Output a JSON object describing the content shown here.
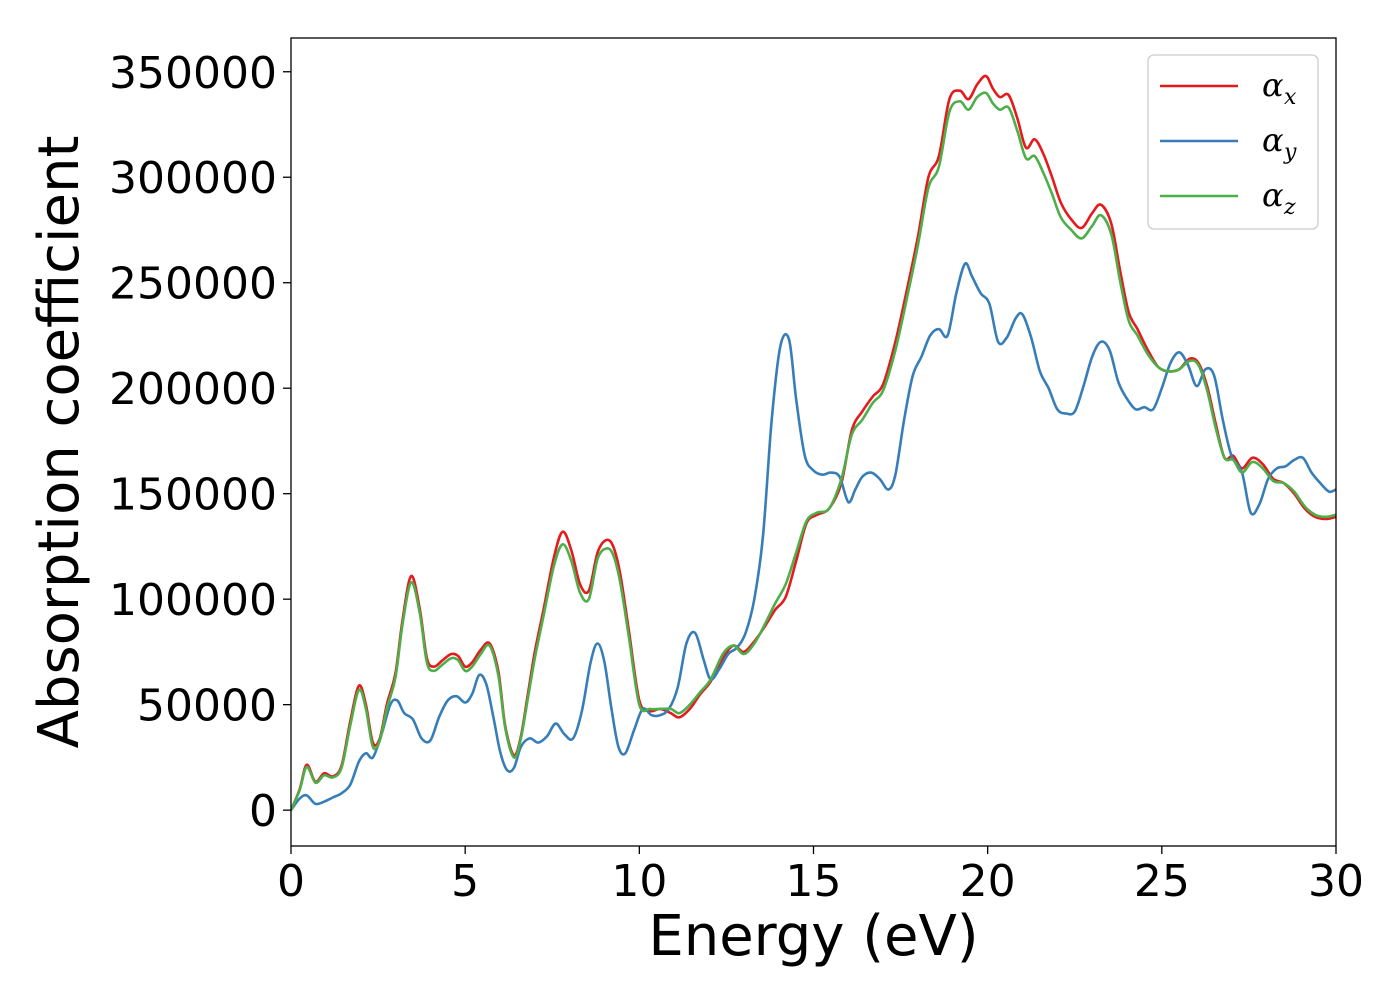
{
  "chart_data": {
    "type": "line",
    "xlabel": "Energy (eV)",
    "ylabel": "Absorption coefficient",
    "xlim": [
      0,
      30
    ],
    "ylim": [
      -17000,
      366000
    ],
    "x_ticks": [
      0,
      5,
      10,
      15,
      20,
      25,
      30
    ],
    "y_ticks": [
      0,
      50000,
      100000,
      150000,
      200000,
      250000,
      300000,
      350000
    ],
    "legend_placement": "top-right",
    "grid": false,
    "series": [
      {
        "name": "α",
        "subscript": "x",
        "color": "#e41a1c",
        "x": [
          0,
          0.25,
          0.45,
          0.7,
          0.95,
          1.2,
          1.45,
          1.7,
          1.95,
          2.15,
          2.35,
          2.55,
          2.75,
          3.0,
          3.2,
          3.45,
          3.7,
          3.9,
          4.1,
          4.35,
          4.6,
          4.8,
          5.0,
          5.2,
          5.45,
          5.7,
          5.95,
          6.15,
          6.4,
          6.6,
          6.8,
          7.0,
          7.25,
          7.55,
          7.8,
          8.05,
          8.3,
          8.55,
          8.8,
          9.05,
          9.25,
          9.45,
          9.7,
          10.0,
          10.3,
          10.6,
          10.9,
          11.15,
          11.45,
          11.75,
          12.05,
          12.4,
          12.7,
          13.0,
          13.3,
          13.6,
          13.9,
          14.2,
          14.5,
          14.8,
          15.1,
          15.45,
          15.8,
          16.1,
          16.4,
          16.7,
          17.0,
          17.35,
          17.7,
          18.0,
          18.3,
          18.6,
          18.9,
          19.2,
          19.45,
          19.7,
          19.95,
          20.15,
          20.35,
          20.6,
          20.85,
          21.1,
          21.35,
          21.6,
          21.85,
          22.1,
          22.4,
          22.7,
          23.0,
          23.25,
          23.55,
          23.8,
          24.05,
          24.3,
          24.6,
          24.9,
          25.2,
          25.5,
          25.8,
          26.05,
          26.3,
          26.55,
          26.8,
          27.05,
          27.3,
          27.6,
          27.9,
          28.2,
          28.5,
          28.8,
          29.1,
          29.4,
          29.7,
          30.0
        ],
        "y": [
          0,
          10000,
          21500,
          13500,
          17500,
          16000,
          21000,
          42000,
          59000,
          50000,
          32000,
          34000,
          50000,
          65000,
          90000,
          111000,
          95000,
          72000,
          68000,
          71000,
          74000,
          73000,
          68000,
          70000,
          76000,
          79000,
          66000,
          40000,
          26000,
          35000,
          55000,
          75000,
          95000,
          120000,
          132000,
          123000,
          107000,
          104000,
          122000,
          128000,
          125000,
          112000,
          85000,
          52000,
          47000,
          48000,
          46000,
          44000,
          48000,
          55000,
          61000,
          72000,
          78000,
          75000,
          80000,
          87000,
          95000,
          101000,
          118000,
          136000,
          140000,
          143000,
          155000,
          180000,
          189000,
          196000,
          202000,
          222000,
          248000,
          272000,
          300000,
          310000,
          337000,
          341000,
          337000,
          344000,
          348000,
          342000,
          338000,
          339000,
          328000,
          314000,
          318000,
          311000,
          300000,
          288000,
          280000,
          276000,
          283000,
          287000,
          278000,
          256000,
          236000,
          228000,
          218000,
          210000,
          208000,
          209000,
          214000,
          212000,
          201000,
          183000,
          167000,
          168000,
          162000,
          167000,
          164000,
          157000,
          155000,
          150000,
          143000,
          139000,
          138000,
          139000
        ]
      },
      {
        "name": "α",
        "subscript": "y",
        "color": "#377eb8",
        "x": [
          0,
          0.25,
          0.45,
          0.7,
          0.95,
          1.2,
          1.45,
          1.7,
          1.95,
          2.15,
          2.35,
          2.6,
          2.85,
          3.05,
          3.25,
          3.5,
          3.75,
          4.0,
          4.25,
          4.5,
          4.75,
          5.0,
          5.2,
          5.4,
          5.6,
          5.8,
          6.0,
          6.2,
          6.4,
          6.6,
          6.85,
          7.1,
          7.35,
          7.6,
          7.85,
          8.1,
          8.35,
          8.6,
          8.8,
          9.0,
          9.2,
          9.4,
          9.6,
          9.85,
          10.1,
          10.35,
          10.6,
          10.85,
          11.1,
          11.35,
          11.6,
          11.85,
          12.05,
          12.3,
          12.55,
          12.8,
          13.05,
          13.3,
          13.55,
          13.8,
          14.05,
          14.3,
          14.5,
          14.75,
          15.0,
          15.25,
          15.5,
          15.75,
          16.0,
          16.2,
          16.4,
          16.65,
          16.9,
          17.15,
          17.35,
          17.6,
          17.85,
          18.1,
          18.35,
          18.6,
          18.85,
          19.1,
          19.35,
          19.55,
          19.8,
          20.05,
          20.3,
          20.55,
          20.8,
          21.0,
          21.25,
          21.5,
          21.75,
          22.0,
          22.25,
          22.5,
          22.75,
          23.0,
          23.25,
          23.5,
          23.75,
          24.0,
          24.25,
          24.5,
          24.75,
          25.0,
          25.25,
          25.5,
          25.75,
          26.0,
          26.25,
          26.5,
          26.75,
          27.0,
          27.3,
          27.55,
          27.8,
          28.05,
          28.3,
          28.55,
          28.8,
          29.05,
          29.3,
          29.55,
          29.8,
          30.0
        ],
        "y": [
          0,
          5500,
          7000,
          3000,
          4000,
          6000,
          8000,
          12000,
          23000,
          27000,
          25000,
          36000,
          50000,
          52000,
          46000,
          43000,
          34000,
          33000,
          44000,
          52000,
          54000,
          51000,
          55000,
          64000,
          60000,
          45000,
          28000,
          19000,
          20000,
          30000,
          34000,
          32000,
          35000,
          41000,
          36000,
          34000,
          47000,
          70000,
          79000,
          70000,
          48000,
          30000,
          27000,
          38000,
          48000,
          45000,
          45000,
          48000,
          58000,
          79000,
          84000,
          71000,
          62000,
          67000,
          74000,
          77000,
          84000,
          100000,
          130000,
          185000,
          220000,
          223000,
          195000,
          168000,
          161000,
          159000,
          160000,
          158000,
          146000,
          152000,
          158000,
          160000,
          157000,
          152000,
          159000,
          185000,
          206000,
          215000,
          225000,
          228000,
          225000,
          245000,
          259000,
          253000,
          245000,
          240000,
          222000,
          224000,
          233000,
          235000,
          224000,
          208000,
          200000,
          190000,
          188000,
          189000,
          201000,
          215000,
          222000,
          218000,
          203000,
          195000,
          190000,
          191000,
          190000,
          200000,
          212000,
          217000,
          211000,
          201000,
          209000,
          206000,
          185000,
          168000,
          160000,
          141000,
          145000,
          157000,
          162000,
          163000,
          166000,
          167000,
          160000,
          155000,
          151000,
          152000
        ]
      },
      {
        "name": "α",
        "subscript": "z",
        "color": "#4daf4a",
        "x": [
          0,
          0.25,
          0.45,
          0.7,
          0.95,
          1.2,
          1.45,
          1.7,
          1.95,
          2.15,
          2.35,
          2.55,
          2.75,
          3.0,
          3.2,
          3.45,
          3.7,
          3.9,
          4.1,
          4.35,
          4.6,
          4.8,
          5.0,
          5.2,
          5.45,
          5.7,
          5.95,
          6.15,
          6.4,
          6.6,
          6.8,
          7.0,
          7.25,
          7.55,
          7.8,
          8.05,
          8.3,
          8.55,
          8.8,
          9.05,
          9.25,
          9.45,
          9.7,
          10.0,
          10.3,
          10.6,
          10.9,
          11.15,
          11.45,
          11.75,
          12.05,
          12.4,
          12.7,
          13.0,
          13.3,
          13.6,
          13.9,
          14.2,
          14.5,
          14.8,
          15.1,
          15.45,
          15.8,
          16.1,
          16.4,
          16.7,
          17.0,
          17.35,
          17.7,
          18.0,
          18.3,
          18.6,
          18.9,
          19.2,
          19.45,
          19.7,
          19.95,
          20.15,
          20.35,
          20.6,
          20.85,
          21.1,
          21.35,
          21.6,
          21.85,
          22.1,
          22.4,
          22.7,
          23.0,
          23.25,
          23.55,
          23.8,
          24.05,
          24.3,
          24.6,
          24.9,
          25.2,
          25.5,
          25.8,
          26.05,
          26.3,
          26.55,
          26.8,
          27.05,
          27.3,
          27.6,
          27.9,
          28.2,
          28.5,
          28.8,
          29.1,
          29.4,
          29.7,
          30.0
        ],
        "y": [
          0,
          9500,
          20500,
          13000,
          16500,
          15500,
          20000,
          40000,
          57000,
          48000,
          30000,
          33000,
          48000,
          63000,
          88000,
          108000,
          93000,
          70000,
          66000,
          69000,
          72000,
          71000,
          66000,
          68000,
          74000,
          78000,
          64000,
          39000,
          25000,
          34000,
          53000,
          72000,
          92000,
          116000,
          126000,
          118000,
          103000,
          100000,
          119000,
          124000,
          121000,
          108000,
          82000,
          50000,
          48000,
          48000,
          48000,
          46000,
          50000,
          56000,
          62000,
          74000,
          78000,
          74000,
          79000,
          88000,
          98000,
          107000,
          122000,
          137000,
          141000,
          143000,
          157000,
          178000,
          185000,
          193000,
          199000,
          218000,
          244000,
          268000,
          295000,
          305000,
          331000,
          336000,
          332000,
          338000,
          340000,
          335000,
          332000,
          333000,
          322000,
          309000,
          310000,
          302000,
          292000,
          281000,
          275000,
          271000,
          277000,
          282000,
          273000,
          251000,
          232000,
          225000,
          216000,
          210000,
          208000,
          209000,
          213000,
          211000,
          199000,
          181000,
          167000,
          166000,
          160000,
          165000,
          162000,
          156000,
          155000,
          151000,
          144000,
          140000,
          139000,
          140000
        ]
      }
    ]
  }
}
